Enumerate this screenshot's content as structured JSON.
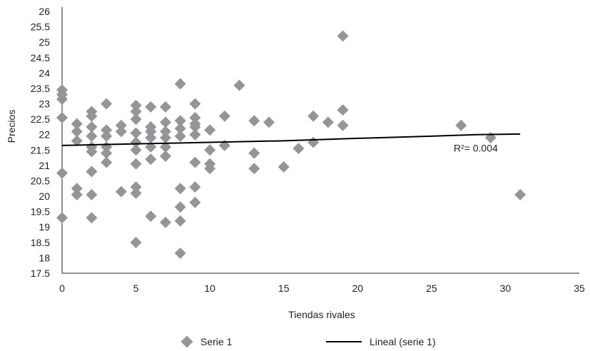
{
  "chart_data": {
    "type": "scatter",
    "title": "",
    "xlabel": "Tiendas rivales",
    "ylabel": "Precios",
    "xlim": [
      0,
      35
    ],
    "ylim": [
      17.5,
      26
    ],
    "x_ticks": [
      "0",
      "5",
      "10",
      "15",
      "20",
      "25",
      "30",
      "35"
    ],
    "y_ticks": [
      "17.5",
      "18",
      "18.5",
      "19",
      "19.5",
      "20",
      "20.5",
      "21",
      "21.5",
      "22",
      "22.5",
      "23",
      "23.5",
      "24",
      "24.5",
      "25",
      "25.5",
      "26"
    ],
    "grid": false,
    "legend_position": "bottom",
    "colors": {
      "points": "#939598",
      "trend": "#000000",
      "axis": "#231f20"
    },
    "series": [
      {
        "name": "Serie 1",
        "points": [
          [
            0,
            23.45
          ],
          [
            0,
            23.3
          ],
          [
            0,
            23.15
          ],
          [
            0,
            22.55
          ],
          [
            0,
            20.75
          ],
          [
            0,
            19.3
          ],
          [
            1,
            22.35
          ],
          [
            1,
            22.1
          ],
          [
            1,
            21.8
          ],
          [
            1,
            20.25
          ],
          [
            1,
            20.05
          ],
          [
            2,
            22.75
          ],
          [
            2,
            22.6
          ],
          [
            2,
            22.25
          ],
          [
            2,
            21.95
          ],
          [
            2,
            21.6
          ],
          [
            2,
            21.45
          ],
          [
            2,
            20.8
          ],
          [
            2,
            20.05
          ],
          [
            2,
            19.3
          ],
          [
            3,
            23.0
          ],
          [
            3,
            22.15
          ],
          [
            3,
            21.95
          ],
          [
            3,
            21.6
          ],
          [
            3,
            21.4
          ],
          [
            3,
            21.1
          ],
          [
            4,
            22.3
          ],
          [
            4,
            22.1
          ],
          [
            4,
            20.15
          ],
          [
            5,
            22.95
          ],
          [
            5,
            22.75
          ],
          [
            5,
            22.5
          ],
          [
            5,
            22.05
          ],
          [
            5,
            21.75
          ],
          [
            5,
            21.5
          ],
          [
            5,
            21.05
          ],
          [
            5,
            20.3
          ],
          [
            5,
            20.1
          ],
          [
            5,
            18.5
          ],
          [
            6,
            22.9
          ],
          [
            6,
            22.25
          ],
          [
            6,
            22.1
          ],
          [
            6,
            21.9
          ],
          [
            6,
            21.6
          ],
          [
            6,
            21.2
          ],
          [
            6,
            19.35
          ],
          [
            7,
            22.9
          ],
          [
            7,
            22.4
          ],
          [
            7,
            22.1
          ],
          [
            7,
            21.9
          ],
          [
            7,
            21.6
          ],
          [
            7,
            21.3
          ],
          [
            7,
            19.15
          ],
          [
            8,
            23.65
          ],
          [
            8,
            22.45
          ],
          [
            8,
            22.2
          ],
          [
            8,
            21.95
          ],
          [
            8,
            20.25
          ],
          [
            8,
            19.65
          ],
          [
            8,
            19.2
          ],
          [
            8,
            18.15
          ],
          [
            9,
            23.0
          ],
          [
            9,
            22.55
          ],
          [
            9,
            22.35
          ],
          [
            9,
            22.25
          ],
          [
            9,
            22.0
          ],
          [
            9,
            21.1
          ],
          [
            9,
            20.3
          ],
          [
            9,
            19.8
          ],
          [
            10,
            22.15
          ],
          [
            10,
            21.5
          ],
          [
            10,
            21.05
          ],
          [
            10,
            20.9
          ],
          [
            11,
            22.6
          ],
          [
            11,
            21.65
          ],
          [
            12,
            23.6
          ],
          [
            13,
            22.45
          ],
          [
            13,
            21.4
          ],
          [
            13,
            20.9
          ],
          [
            14,
            22.4
          ],
          [
            15,
            20.95
          ],
          [
            16,
            21.55
          ],
          [
            17,
            22.6
          ],
          [
            17,
            21.75
          ],
          [
            18,
            22.4
          ],
          [
            19,
            25.2
          ],
          [
            19,
            22.8
          ],
          [
            19,
            22.3
          ],
          [
            27,
            22.3
          ],
          [
            29,
            21.9
          ],
          [
            31,
            20.05
          ]
        ]
      }
    ],
    "trendline": {
      "name": "Lineal (serie 1)",
      "points": [
        [
          0,
          21.65
        ],
        [
          5,
          21.7
        ],
        [
          10,
          21.75
        ],
        [
          15,
          21.8
        ],
        [
          20,
          21.88
        ],
        [
          25,
          21.95
        ],
        [
          28,
          22.0
        ],
        [
          31,
          22.02
        ]
      ]
    },
    "annotation": {
      "text": "R²= 0.004",
      "x": 26.5,
      "y": 21.45
    }
  }
}
